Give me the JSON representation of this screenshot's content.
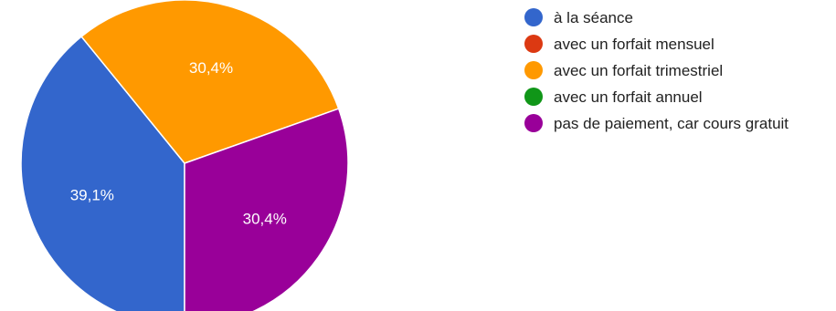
{
  "chart_data": {
    "type": "pie",
    "slices": [
      {
        "label": "à la séance",
        "value": 39.1,
        "display": "39,1%",
        "color": "#3366cc"
      },
      {
        "label": "avec un forfait mensuel",
        "value": 0,
        "display": "",
        "color": "#dc3912"
      },
      {
        "label": "avec un forfait trimestriel",
        "value": 30.4,
        "display": "30,4%",
        "color": "#ff9900"
      },
      {
        "label": "avec un forfait annuel",
        "value": 0,
        "display": "",
        "color": "#109618"
      },
      {
        "label": "pas de paiement, car cours gratuit",
        "value": 30.4,
        "display": "30,4%",
        "color": "#990099"
      }
    ],
    "legend_position": "right"
  }
}
